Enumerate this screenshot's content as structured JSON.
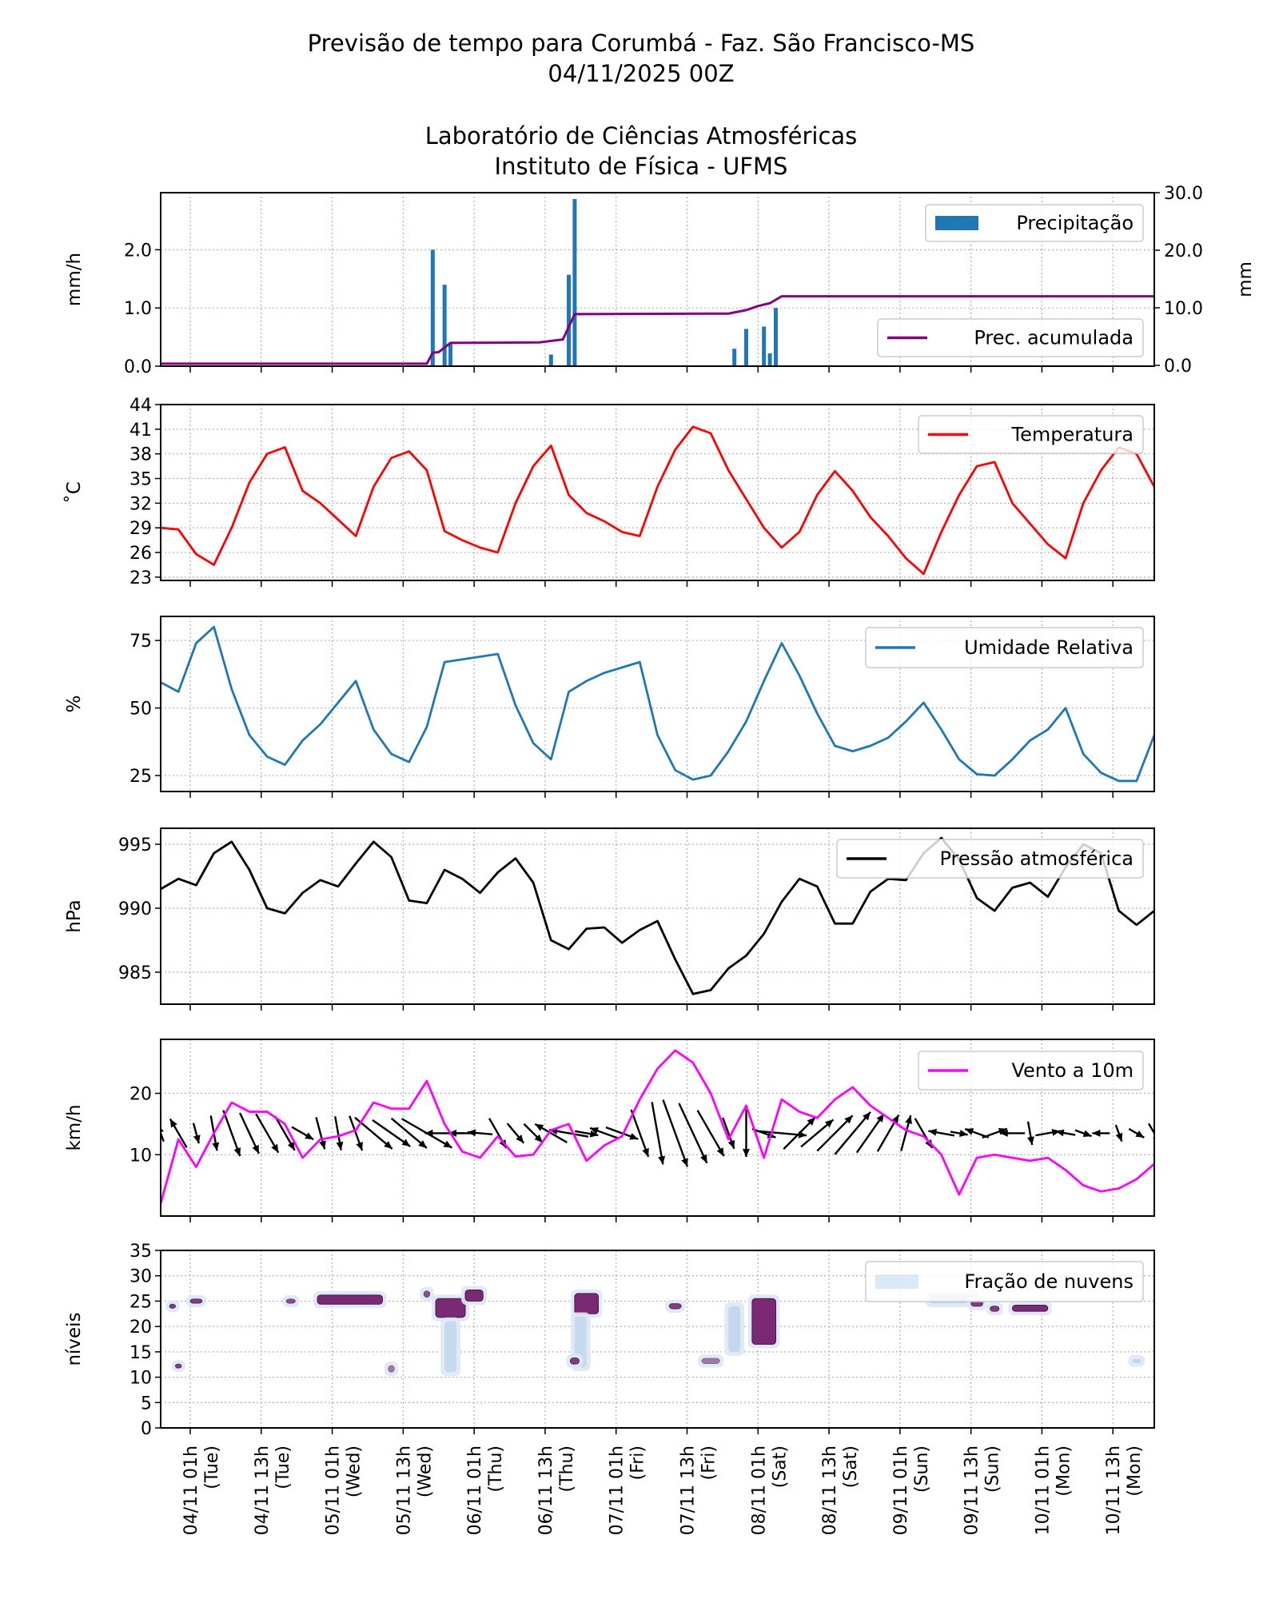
{
  "title": {
    "line1": "Previsão de tempo para Corumbá - Faz. São Francisco-MS",
    "line2": "04/11/2025 00Z",
    "line3": "Laboratório de Ciências Atmosféricas",
    "line4": "Instituto de Física - UFMS"
  },
  "colors": {
    "precip_bar": "#1f77b4",
    "precip_accum": "#800080",
    "temperature": "#ff0000",
    "humidity": "#1f77b4",
    "pressure": "#000000",
    "wind": "#ff00ff",
    "wind_arrow": "#000000",
    "cloud_light": "#dbe8f5",
    "cloud_dark": "#7a2a72"
  },
  "x_axis": {
    "ticks": [
      {
        "time": "04/11 01h",
        "day": "(Tue)"
      },
      {
        "time": "04/11 13h",
        "day": "(Tue)"
      },
      {
        "time": "05/11 01h",
        "day": "(Wed)"
      },
      {
        "time": "05/11 13h",
        "day": "(Wed)"
      },
      {
        "time": "06/11 01h",
        "day": "(Thu)"
      },
      {
        "time": "06/11 13h",
        "day": "(Thu)"
      },
      {
        "time": "07/11 01h",
        "day": "(Fri)"
      },
      {
        "time": "07/11 13h",
        "day": "(Fri)"
      },
      {
        "time": "08/11 01h",
        "day": "(Sat)"
      },
      {
        "time": "08/11 13h",
        "day": "(Sat)"
      },
      {
        "time": "09/11 01h",
        "day": "(Sun)"
      },
      {
        "time": "09/11 13h",
        "day": "(Sun)"
      },
      {
        "time": "10/11 01h",
        "day": "(Mon)"
      },
      {
        "time": "10/11 13h",
        "day": "(Mon)"
      }
    ],
    "range": [
      "03/11 20h",
      "10/11 20h"
    ]
  },
  "chart_data": [
    {
      "type": "bar",
      "panel": "precipitation",
      "ylabel": "mm/h",
      "ylabel_right": "mm",
      "ylim": [
        0,
        2.98
      ],
      "ylim_right": [
        0,
        30
      ],
      "yticks": [
        "0.0",
        "1.0",
        "2.0"
      ],
      "yticks_right": [
        "0.0",
        "10.0",
        "20.0",
        "30.0"
      ],
      "grid": true,
      "legend_placement": "top-right",
      "series": [
        {
          "name": "Precipitação",
          "kind": "bar",
          "points": [
            [
              "05/11 18h",
              2.0
            ],
            [
              "05/11 20h",
              1.4
            ],
            [
              "05/11 21h",
              0.38
            ],
            [
              "06/11 14h",
              0.2
            ],
            [
              "06/11 17h",
              1.57
            ],
            [
              "06/11 18h",
              2.87
            ],
            [
              "07/11 21h",
              0.3
            ],
            [
              "07/11 23h",
              0.64
            ],
            [
              "08/11 02h",
              0.68
            ],
            [
              "08/11 03h",
              0.22
            ],
            [
              "08/11 04h",
              1.0
            ]
          ]
        },
        {
          "name": "Prec. acumulada",
          "kind": "line",
          "axis": "right",
          "points": [
            [
              "03/11 20h",
              0.3
            ],
            [
              "05/11 17h",
              0.3
            ],
            [
              "05/11 18h",
              2.2
            ],
            [
              "05/11 19h",
              2.3
            ],
            [
              "05/11 21h",
              3.9
            ],
            [
              "06/11 12h",
              4.0
            ],
            [
              "06/11 16h",
              4.5
            ],
            [
              "06/11 18h",
              8.9
            ],
            [
              "07/11 20h",
              9.0
            ],
            [
              "07/11 23h",
              9.6
            ],
            [
              "08/11 01h",
              10.3
            ],
            [
              "08/11 03h",
              10.8
            ],
            [
              "08/11 05h",
              12.0
            ],
            [
              "10/11 20h",
              12.0
            ]
          ]
        }
      ]
    },
    {
      "type": "line",
      "panel": "temperature",
      "ylabel": "˚C",
      "ylim": [
        22.6,
        44
      ],
      "yticks": [
        "23",
        "26",
        "29",
        "32",
        "35",
        "38",
        "41",
        "44"
      ],
      "grid": true,
      "legend_placement": "top-right",
      "series": [
        {
          "name": "Temperatura",
          "values": [
            29,
            28.8,
            25.8,
            24.5,
            29,
            34.5,
            38,
            38.8,
            33.5,
            32,
            30,
            28,
            34,
            37.5,
            38.3,
            36,
            28.6,
            27.5,
            26.6,
            26,
            32,
            36.5,
            39,
            33,
            30.8,
            29.8,
            28.5,
            28,
            34,
            38.5,
            41.3,
            40.5,
            36,
            32.5,
            29,
            26.6,
            28.5,
            33,
            35.9,
            33.5,
            30.3,
            28,
            25.3,
            23.4,
            28.5,
            33,
            36.5,
            37,
            32,
            29.5,
            27,
            25.3,
            32,
            36,
            38.8,
            38,
            34
          ]
        }
      ]
    },
    {
      "type": "line",
      "panel": "humidity",
      "ylabel": "%",
      "ylim": [
        19.1,
        83.9
      ],
      "yticks": [
        "25",
        "50",
        "75"
      ],
      "grid": true,
      "legend_placement": "top-right",
      "series": [
        {
          "name": "Umidade Relativa",
          "values": [
            59.5,
            56,
            74,
            80,
            57,
            40,
            32,
            29,
            38,
            44,
            52,
            60,
            42,
            33,
            30,
            43,
            67,
            68,
            69,
            70,
            51,
            37,
            31,
            56,
            60,
            63,
            65,
            67,
            40,
            27,
            23.5,
            25,
            34,
            45,
            60,
            74,
            62,
            48,
            36,
            34,
            36,
            39,
            45,
            52,
            42,
            31,
            25.5,
            25,
            31,
            38,
            42,
            50,
            33,
            26,
            23,
            23,
            40
          ]
        }
      ]
    },
    {
      "type": "line",
      "panel": "pressure",
      "ylabel": "hPa",
      "ylim": [
        982.5,
        996.25
      ],
      "yticks": [
        "985",
        "990",
        "995"
      ],
      "grid": true,
      "legend_placement": "top-right",
      "series": [
        {
          "name": "Pressão atmosférica",
          "values": [
            991.5,
            992.3,
            991.8,
            994.3,
            995.2,
            993,
            990,
            989.6,
            991.2,
            992.2,
            991.7,
            993.5,
            995.2,
            994,
            990.6,
            990.4,
            993,
            992.3,
            991.2,
            992.8,
            993.9,
            992,
            987.5,
            986.8,
            988.4,
            988.5,
            987.3,
            988.3,
            989,
            986,
            983.3,
            983.6,
            985.3,
            986.3,
            988,
            990.5,
            992.3,
            991.7,
            988.8,
            988.8,
            991.3,
            992.3,
            992.2,
            994.3,
            995.5,
            993.8,
            990.8,
            989.8,
            991.6,
            992,
            990.9,
            993.2,
            995,
            994.3,
            989.8,
            988.7,
            989.8
          ]
        }
      ]
    },
    {
      "type": "line",
      "panel": "wind",
      "ylabel": "km/h",
      "ylim": [
        0,
        28.8
      ],
      "yticks": [
        "10",
        "20"
      ],
      "grid": true,
      "legend_placement": "top-right",
      "series": [
        {
          "name": "Vento a 10m",
          "values": [
            2,
            12.5,
            8,
            13.5,
            18.5,
            17,
            17,
            15,
            9.5,
            12.5,
            13,
            14,
            18.5,
            17.5,
            17.5,
            22,
            15,
            10.5,
            9.5,
            13,
            9.7,
            10,
            14,
            15,
            9,
            11.5,
            13,
            19,
            24,
            27,
            25,
            20,
            12.5,
            18,
            9.5,
            19,
            17,
            16,
            19,
            21,
            18,
            16,
            14,
            13,
            10,
            3.5,
            9.5,
            10,
            9.5,
            9,
            9.5,
            7.5,
            5,
            4,
            4.5,
            6,
            8.5
          ]
        }
      ],
      "arrow_direction_deg": [
        110,
        120,
        -75,
        -80,
        -70,
        -65,
        -60,
        -60,
        -30,
        -75,
        -80,
        -70,
        -40,
        -35,
        -40,
        -30,
        180,
        180,
        175,
        -60,
        -50,
        -45,
        150,
        170,
        -10,
        160,
        -20,
        -70,
        -80,
        -70,
        -65,
        -60,
        -70,
        -90,
        -20,
        -5,
        45,
        40,
        45,
        50,
        55,
        60,
        75,
        -60,
        170,
        -10,
        160,
        20,
        180,
        -80,
        10,
        170,
        -20,
        180,
        -70,
        -30,
        -60
      ]
    },
    {
      "type": "heatmap",
      "panel": "clouds",
      "ylabel": "níveis",
      "ylim": [
        0,
        35
      ],
      "yticks": [
        "0",
        "5",
        "10",
        "15",
        "20",
        "25",
        "30",
        "35"
      ],
      "grid": true,
      "legend_placement": "top-right",
      "series": [
        {
          "name": "Fração de nuvens",
          "patches": [
            {
              "time": "03/11 22h",
              "level": [
                23.6,
                24.4
              ],
              "span_h": 1,
              "fraction": 0.9
            },
            {
              "time": "03/11 23h",
              "level": [
                11.8,
                12.6
              ],
              "span_h": 1,
              "fraction": 0.9
            },
            {
              "time": "04/11 02h",
              "level": [
                24.6,
                25.4
              ],
              "span_h": 2,
              "fraction": 0.9
            },
            {
              "time": "04/11 18h",
              "level": [
                24.6,
                25.4
              ],
              "span_h": 1.5,
              "fraction": 0.8
            },
            {
              "time": "05/11 04h",
              "level": [
                24.4,
                26.2
              ],
              "span_h": 11,
              "fraction": 1.0
            },
            {
              "time": "05/11 11h",
              "level": [
                11,
                12.3
              ],
              "span_h": 1,
              "fraction": 0.6
            },
            {
              "time": "05/11 17h",
              "level": [
                25.8,
                27
              ],
              "span_h": 1,
              "fraction": 0.8
            },
            {
              "time": "05/11 21h",
              "level": [
                21.8,
                25.5
              ],
              "span_h": 5,
              "fraction": 1.0
            },
            {
              "time": "05/11 21h",
              "level": [
                11,
                21
              ],
              "span_h": 2,
              "fraction": 0.15
            },
            {
              "time": "06/11 01h",
              "level": [
                25,
                27.2
              ],
              "span_h": 3,
              "fraction": 1.0
            },
            {
              "time": "06/11 20h",
              "level": [
                22.5,
                26.5
              ],
              "span_h": 4,
              "fraction": 1.0
            },
            {
              "time": "06/11 19h",
              "level": [
                12,
                22
              ],
              "span_h": 2,
              "fraction": 0.15
            },
            {
              "time": "06/11 18h",
              "level": [
                12.6,
                13.8
              ],
              "span_h": 1.5,
              "fraction": 0.9
            },
            {
              "time": "07/11 11h",
              "level": [
                23.5,
                24.5
              ],
              "span_h": 2,
              "fraction": 0.9
            },
            {
              "time": "07/11 17h",
              "level": [
                12.7,
                13.7
              ],
              "span_h": 3,
              "fraction": 0.6
            },
            {
              "time": "07/11 21h",
              "level": [
                15,
                24
              ],
              "span_h": 2,
              "fraction": 0.2
            },
            {
              "time": "08/11 02h",
              "level": [
                16.5,
                25.5
              ],
              "span_h": 4,
              "fraction": 1.0
            },
            {
              "time": "09/11 10h",
              "level": [
                24.6,
                26.2
              ],
              "span_h": 8,
              "fraction": 0.35
            },
            {
              "time": "09/11 14h",
              "level": [
                24,
                25
              ],
              "span_h": 2,
              "fraction": 0.9
            },
            {
              "time": "09/11 17h",
              "level": [
                23,
                24
              ],
              "span_h": 1.5,
              "fraction": 0.9
            },
            {
              "time": "09/11 23h",
              "level": [
                23,
                24.2
              ],
              "span_h": 6,
              "fraction": 1.0
            },
            {
              "time": "10/11 17h",
              "level": [
                12.8,
                13.6
              ],
              "span_h": 1.5,
              "fraction": 0.25
            }
          ]
        }
      ]
    }
  ],
  "time": [
    "03/11 20h",
    "03/11 23h",
    "04/11 02h",
    "04/11 05h",
    "04/11 08h",
    "04/11 11h",
    "04/11 14h",
    "04/11 17h",
    "04/11 20h",
    "04/11 23h",
    "05/11 02h",
    "05/11 05h",
    "05/11 08h",
    "05/11 11h",
    "05/11 14h",
    "05/11 17h",
    "05/11 20h",
    "05/11 23h",
    "06/11 02h",
    "06/11 05h",
    "06/11 08h",
    "06/11 11h",
    "06/11 14h",
    "06/11 17h",
    "06/11 20h",
    "06/11 23h",
    "07/11 02h",
    "07/11 05h",
    "07/11 08h",
    "07/11 11h",
    "07/11 14h",
    "07/11 17h",
    "07/11 20h",
    "07/11 23h",
    "08/11 02h",
    "08/11 05h",
    "08/11 08h",
    "08/11 11h",
    "08/11 14h",
    "08/11 17h",
    "08/11 20h",
    "08/11 23h",
    "09/11 02h",
    "09/11 05h",
    "09/11 08h",
    "09/11 11h",
    "09/11 14h",
    "09/11 17h",
    "09/11 20h",
    "09/11 23h",
    "10/11 02h",
    "10/11 05h",
    "10/11 08h",
    "10/11 11h",
    "10/11 14h",
    "10/11 17h",
    "10/11 20h"
  ]
}
